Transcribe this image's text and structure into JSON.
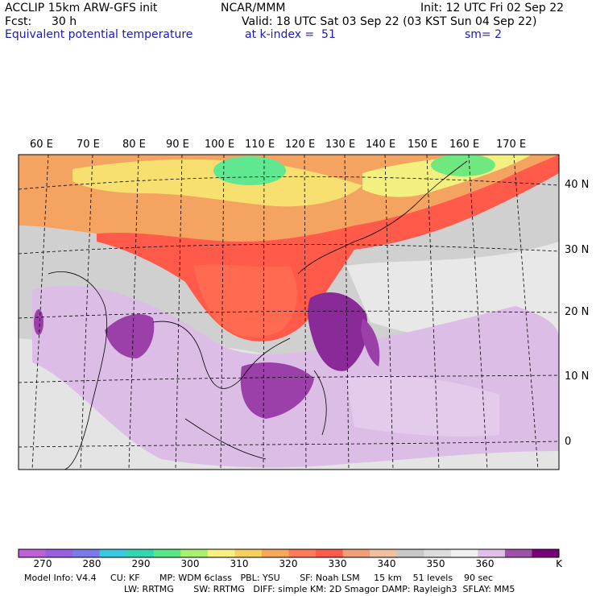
{
  "header": {
    "left_line1": "ACCLIP 15km ARW-GFS init",
    "center_line1": "NCAR/MMM",
    "right_line1": "Init: 12 UTC Fri 02 Sep 22",
    "fcst_label": "Fcst:",
    "fcst_value": "30 h",
    "valid_line": "Valid: 18 UTC Sat 03 Sep 22 (03 KST Sun 04 Sep 22)",
    "field_name": "Equivalent potential temperature",
    "level_line": "at k-index =  51",
    "smooth_line": "sm= 2"
  },
  "map": {
    "lon_labels": [
      "60 E",
      "70 E",
      "80 E",
      "90 E",
      "100 E",
      "110 E",
      "120 E",
      "130 E",
      "140 E",
      "150 E",
      "160 E",
      "170 E"
    ],
    "lat_labels": [
      "40 N",
      "30 N",
      "20 N",
      "10 N",
      "0"
    ],
    "colors": {
      "land_warm": "#f0a060",
      "hot_band": "#ff5a4a",
      "green": "#60e890",
      "grey": "#c8c8c8",
      "light_grey": "#e6e6e6",
      "lavender": "#e0c2e8",
      "purple": "#9a40a8",
      "dark_purple": "#780080"
    }
  },
  "colorbar": {
    "unit": "K",
    "labels": [
      "270",
      "280",
      "290",
      "300",
      "310",
      "320",
      "330",
      "340",
      "350",
      "360"
    ],
    "colors": [
      "#c060d8",
      "#9a60e0",
      "#7a7ae8",
      "#3ac8e0",
      "#30d8b0",
      "#58e888",
      "#a8f070",
      "#f8f080",
      "#f8d060",
      "#f8a858",
      "#ff7a58",
      "#ff5a4a",
      "#f0a078",
      "#f0c0a0",
      "#c8c8c8",
      "#dcdcdc",
      "#f0f0f0",
      "#e0c0e8",
      "#a050a8",
      "#780078"
    ]
  },
  "footer": {
    "line1": "Model Info: V4.4     CU: KF       MP: WDM 6class   PBL: YSU       SF: Noah LSM     15 km    51 levels    90 sec",
    "line2": "LW: RRTMG       SW: RRTMG   DIFF: simple KM: 2D Smagor DAMP: Rayleigh3  SFLAY: MM5"
  }
}
